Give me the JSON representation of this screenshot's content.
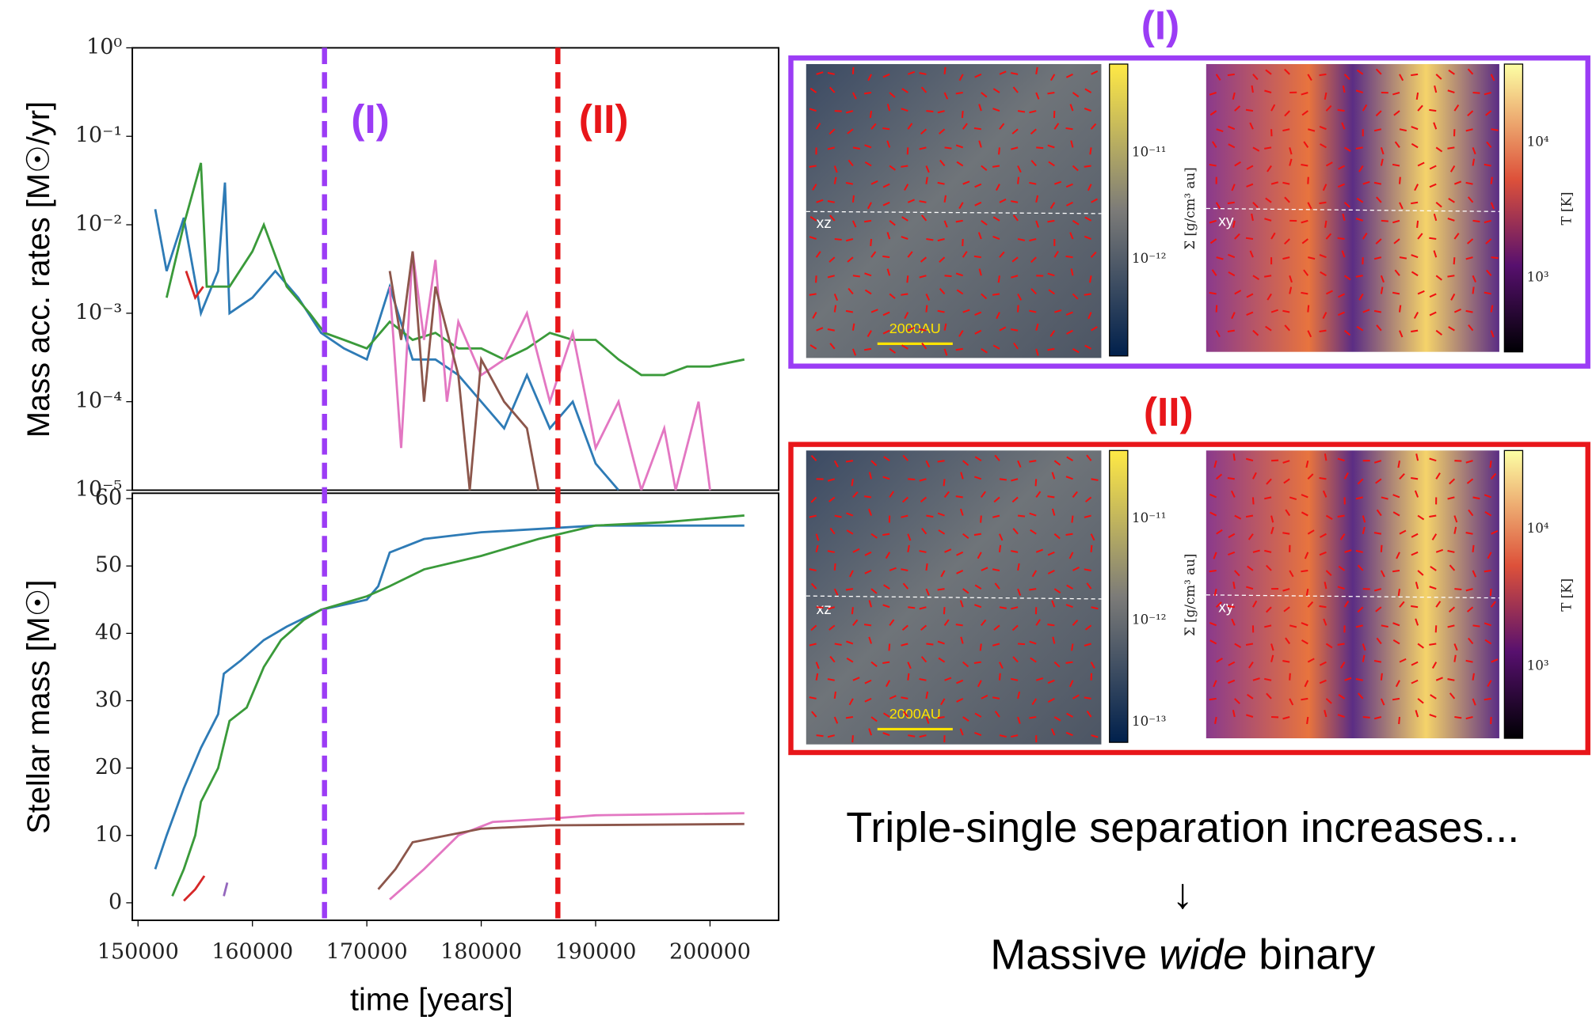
{
  "chart_data": [
    {
      "type": "line",
      "ylabel": "Mass acc. rates [M☉/yr]",
      "log_y": true,
      "xlim": [
        149500,
        206000
      ],
      "ylim": [
        1e-05,
        1
      ],
      "yticks": [
        {
          "value": 1,
          "label": "10⁰"
        },
        {
          "value": 0.1,
          "label": "10⁻¹"
        },
        {
          "value": 0.01,
          "label": "10⁻²"
        },
        {
          "value": 0.001,
          "label": "10⁻³"
        },
        {
          "value": 0.0001,
          "label": "10⁻⁴"
        },
        {
          "value": 1e-05,
          "label": "10⁻⁵"
        }
      ],
      "vlines": [
        {
          "x": 166300,
          "label": "(I)",
          "color": "#9b3cf5"
        },
        {
          "x": 186700,
          "label": "(II)",
          "color": "#e8161a"
        }
      ],
      "series": [
        {
          "color": "#2e7bb6",
          "x": [
            151500,
            152500,
            154000,
            155500,
            157000,
            157600,
            158000,
            160000,
            162000,
            164000,
            166000,
            168000,
            170000,
            172000,
            174000,
            176000,
            178000,
            180000,
            182000,
            184000,
            186000,
            188000,
            190000,
            192000
          ],
          "values": [
            0.015,
            0.003,
            0.012,
            0.001,
            0.003,
            0.03,
            0.001,
            0.0015,
            0.003,
            0.0015,
            0.0006,
            0.0004,
            0.0003,
            0.002,
            0.0003,
            0.0003,
            0.0002,
            0.0001,
            5e-05,
            0.0002,
            5e-05,
            0.0001,
            2e-05,
            1e-05
          ]
        },
        {
          "color": "#3a9a3a",
          "x": [
            152500,
            154000,
            155500,
            156000,
            158000,
            160000,
            161000,
            163000,
            165000,
            166300,
            168000,
            170000,
            172000,
            174000,
            176000,
            178000,
            180000,
            182000,
            184000,
            186000,
            188000,
            190000,
            192000,
            194000,
            196000,
            198000,
            200000,
            203000
          ],
          "values": [
            0.0015,
            0.01,
            0.05,
            0.002,
            0.002,
            0.005,
            0.01,
            0.002,
            0.001,
            0.0006,
            0.0005,
            0.0004,
            0.0008,
            0.0005,
            0.0006,
            0.0004,
            0.0004,
            0.0003,
            0.0004,
            0.0006,
            0.0005,
            0.0005,
            0.0003,
            0.0002,
            0.0002,
            0.00025,
            0.00025,
            0.0003
          ]
        },
        {
          "color": "#e377c2",
          "x": [
            172000,
            173000,
            174000,
            175000,
            176000,
            177000,
            178000,
            180000,
            182000,
            184000,
            186000,
            188000,
            190000,
            192000,
            194000,
            196000,
            197000,
            199000,
            200000
          ],
          "values": [
            0.002,
            3e-05,
            0.005,
            0.0005,
            0.004,
            0.0001,
            0.0008,
            0.0002,
            0.0003,
            0.001,
            0.0001,
            0.0006,
            3e-05,
            0.0001,
            1e-05,
            5e-05,
            1e-05,
            0.0001,
            1e-05
          ]
        },
        {
          "color": "#8c564b",
          "x": [
            172000,
            173000,
            174000,
            175000,
            176000,
            178000,
            179000,
            180000,
            182000,
            184000,
            185000
          ],
          "values": [
            0.003,
            0.0005,
            0.005,
            0.0001,
            0.002,
            0.0002,
            1e-05,
            0.0003,
            0.0001,
            5e-05,
            1e-05
          ]
        },
        {
          "color": "#d62728",
          "x": [
            154200,
            155000,
            155700
          ],
          "values": [
            0.003,
            0.0015,
            0.002
          ]
        }
      ]
    },
    {
      "type": "line",
      "ylabel": "Stellar mass [M☉]",
      "xlabel": "time [years]",
      "xlim": [
        149500,
        206000
      ],
      "ylim": [
        -2.6,
        60.8
      ],
      "yticks": [
        0,
        10,
        20,
        30,
        40,
        50,
        60
      ],
      "xticks": [
        150000,
        160000,
        170000,
        180000,
        190000,
        200000
      ],
      "series": [
        {
          "color": "#2e7bb6",
          "x": [
            151500,
            152500,
            154000,
            155500,
            157000,
            157500,
            159000,
            161000,
            163000,
            166000,
            170000,
            171000,
            172000,
            175000,
            180000,
            185000,
            190000,
            203000
          ],
          "values": [
            5,
            10,
            17,
            23,
            28,
            34,
            36,
            39,
            41,
            43.5,
            45,
            47,
            52,
            54,
            55,
            55.5,
            56,
            56
          ]
        },
        {
          "color": "#3a9a3a",
          "x": [
            153000,
            154000,
            155000,
            155500,
            157000,
            158000,
            159500,
            161000,
            162500,
            164500,
            166000,
            170000,
            172000,
            175000,
            180000,
            185000,
            190000,
            196000,
            203000
          ],
          "values": [
            1,
            5,
            10,
            15,
            20,
            27,
            29,
            35,
            39,
            42,
            43.5,
            45.5,
            47,
            49.5,
            51.5,
            54,
            56,
            56.5,
            57.5
          ]
        },
        {
          "color": "#e377c2",
          "x": [
            172000,
            175000,
            178000,
            181000,
            186000,
            190000,
            203000
          ],
          "values": [
            0.5,
            5,
            10,
            12,
            12.5,
            13,
            13.3
          ]
        },
        {
          "color": "#8c564b",
          "x": [
            171000,
            172500,
            174000,
            177000,
            180000,
            186000,
            203000
          ],
          "values": [
            2,
            5,
            9,
            10,
            11,
            11.5,
            11.7
          ]
        },
        {
          "color": "#d62728",
          "x": [
            154000,
            155000,
            155800
          ],
          "values": [
            0.3,
            2,
            4
          ]
        },
        {
          "color": "#9467bd",
          "x": [
            157500,
            157800
          ],
          "values": [
            1,
            3
          ]
        }
      ]
    }
  ],
  "panels": {
    "top": {
      "label": "(I)",
      "density": {
        "slice": "xz",
        "scale": "2000AU",
        "ticks": [
          "10⁻¹¹",
          "10⁻¹²"
        ],
        "cbar_label": "Σ [g/cm³ au]"
      },
      "temperature": {
        "slice": "xy",
        "ticks": [
          "10⁴",
          "10³"
        ],
        "cbar_label": "T [K]"
      }
    },
    "bottom": {
      "label": "(II)",
      "density": {
        "slice": "xz",
        "scale": "2000AU",
        "ticks": [
          "10⁻¹¹",
          "10⁻¹²",
          "10⁻¹³"
        ],
        "cbar_label": "Σ [g/cm³ au]"
      },
      "temperature": {
        "slice": "xy",
        "ticks": [
          "10⁴",
          "10³"
        ],
        "cbar_label": "T [K]"
      }
    }
  },
  "caption": {
    "line1": "Triple-single separation increases...",
    "arrow": "↓",
    "line2": [
      "Massive",
      "wide",
      "binary"
    ]
  }
}
